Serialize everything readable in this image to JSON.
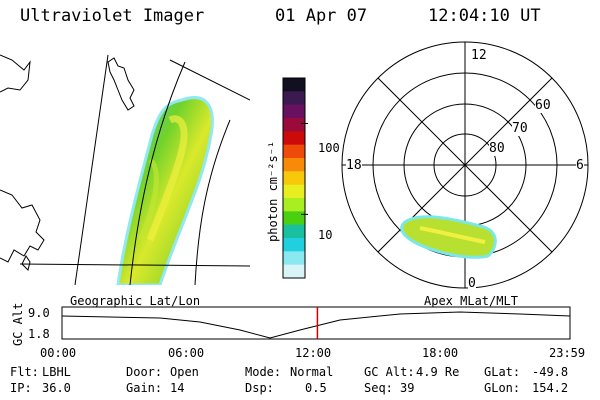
{
  "header": {
    "instrument": "Ultraviolet Imager",
    "date": "01 Apr 07",
    "time": "12:04:10 UT"
  },
  "colorbar": {
    "label": "photon cm⁻²s⁻¹",
    "tick_labels": [
      "100",
      "10"
    ],
    "tick_values": [
      100,
      10
    ],
    "colors": [
      "#101020",
      "#3a1a50",
      "#6a1060",
      "#9a0a3a",
      "#cc0a0a",
      "#ee4a0a",
      "#f88a0a",
      "#f8c80a",
      "#e8ee20",
      "#a8ee20",
      "#4ad010",
      "#1abfa0",
      "#20d0e0",
      "#8ae8f0",
      "#d8f4f8"
    ]
  },
  "polar": {
    "mlt_labels": {
      "top": "12",
      "left": "18",
      "right": "6",
      "bottom": "0"
    },
    "mlat_labels": [
      "60",
      "70",
      "80"
    ]
  },
  "timeline": {
    "left_title": "Geographic Lat/Lon",
    "right_title": "Apex MLat/MLT",
    "ylabel": "GC Alt",
    "y_ticks": [
      "9.0",
      "1.8"
    ],
    "x_ticks": [
      "00:00",
      "06:00",
      "12:00",
      "18:00",
      "23:59"
    ],
    "marker_time": "12:04",
    "marker_color": "#cc0000"
  },
  "status": {
    "flt_label": "Flt:",
    "flt_value": "LBHL",
    "ip_label": "IP:",
    "ip_value": "36.0",
    "door_label": "Door:",
    "door_value": "Open",
    "gain_label": "Gain:",
    "gain_value": "14",
    "mode_label": "Mode:",
    "mode_value": "Normal",
    "dsp_label": "Dsp:",
    "dsp_value": "0.5",
    "gcalt_label": "GC Alt:",
    "gcalt_value": "4.9 Re",
    "seq_label": "Seq:",
    "seq_value": "39",
    "glat_label": "GLat:",
    "glat_value": "-49.8",
    "glon_label": "GLon:",
    "glon_value": "154.2"
  }
}
